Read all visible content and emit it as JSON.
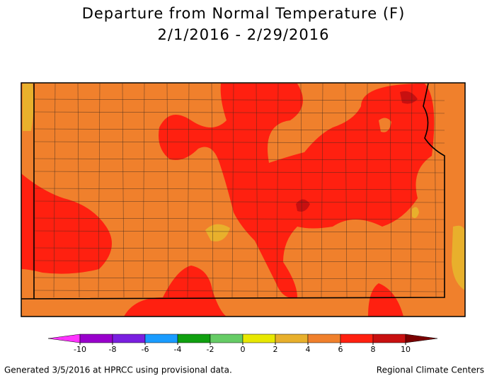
{
  "title": "Departure from Normal Temperature (F)",
  "subtitle": "2/1/2016 - 2/29/2016",
  "legend": {
    "ticks": [
      -10,
      -8,
      -6,
      -4,
      -2,
      0,
      2,
      4,
      6,
      8,
      10
    ],
    "colors": [
      "#ff33ff",
      "#9900cc",
      "#7a1fe0",
      "#1a9cff",
      "#10a010",
      "#66cc66",
      "#e8e800",
      "#e8b02c",
      "#f0802c",
      "#ff2010",
      "#c81010",
      "#7a0000"
    ]
  },
  "footer": {
    "left": "Generated 3/5/2016 at HPRCC using provisional data.",
    "right": "Regional Climate Centers"
  }
}
